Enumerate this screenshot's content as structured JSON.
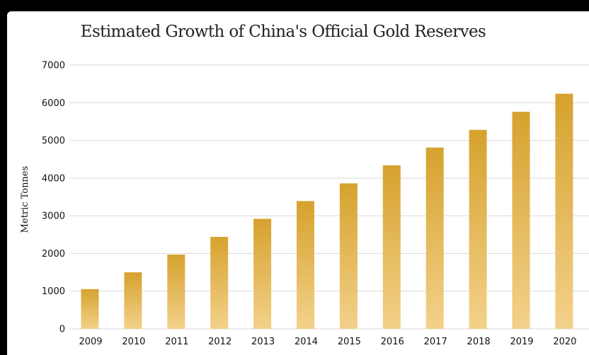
{
  "chart_data": {
    "type": "bar",
    "title": "Estimated Growth of China's Official Gold Reserves",
    "xlabel": "",
    "ylabel": "Metric Tonnes",
    "categories": [
      "2009",
      "2010",
      "2011",
      "2012",
      "2013",
      "2014",
      "2015",
      "2016",
      "2017",
      "2018",
      "2019",
      "2020"
    ],
    "values": [
      1054,
      1500,
      1970,
      2440,
      2920,
      3390,
      3860,
      4340,
      4810,
      5280,
      5760,
      6240
    ],
    "ylim": [
      0,
      7000
    ],
    "yticks": [
      0,
      1000,
      2000,
      3000,
      4000,
      5000,
      6000,
      7000
    ],
    "grid": true,
    "legend": "none",
    "colors": {
      "bar_top": "#d6a22e",
      "bar_bottom": "#f3d18a",
      "grid": "#d9d9d9",
      "background": "#ffffff",
      "outer": "#000000"
    }
  }
}
